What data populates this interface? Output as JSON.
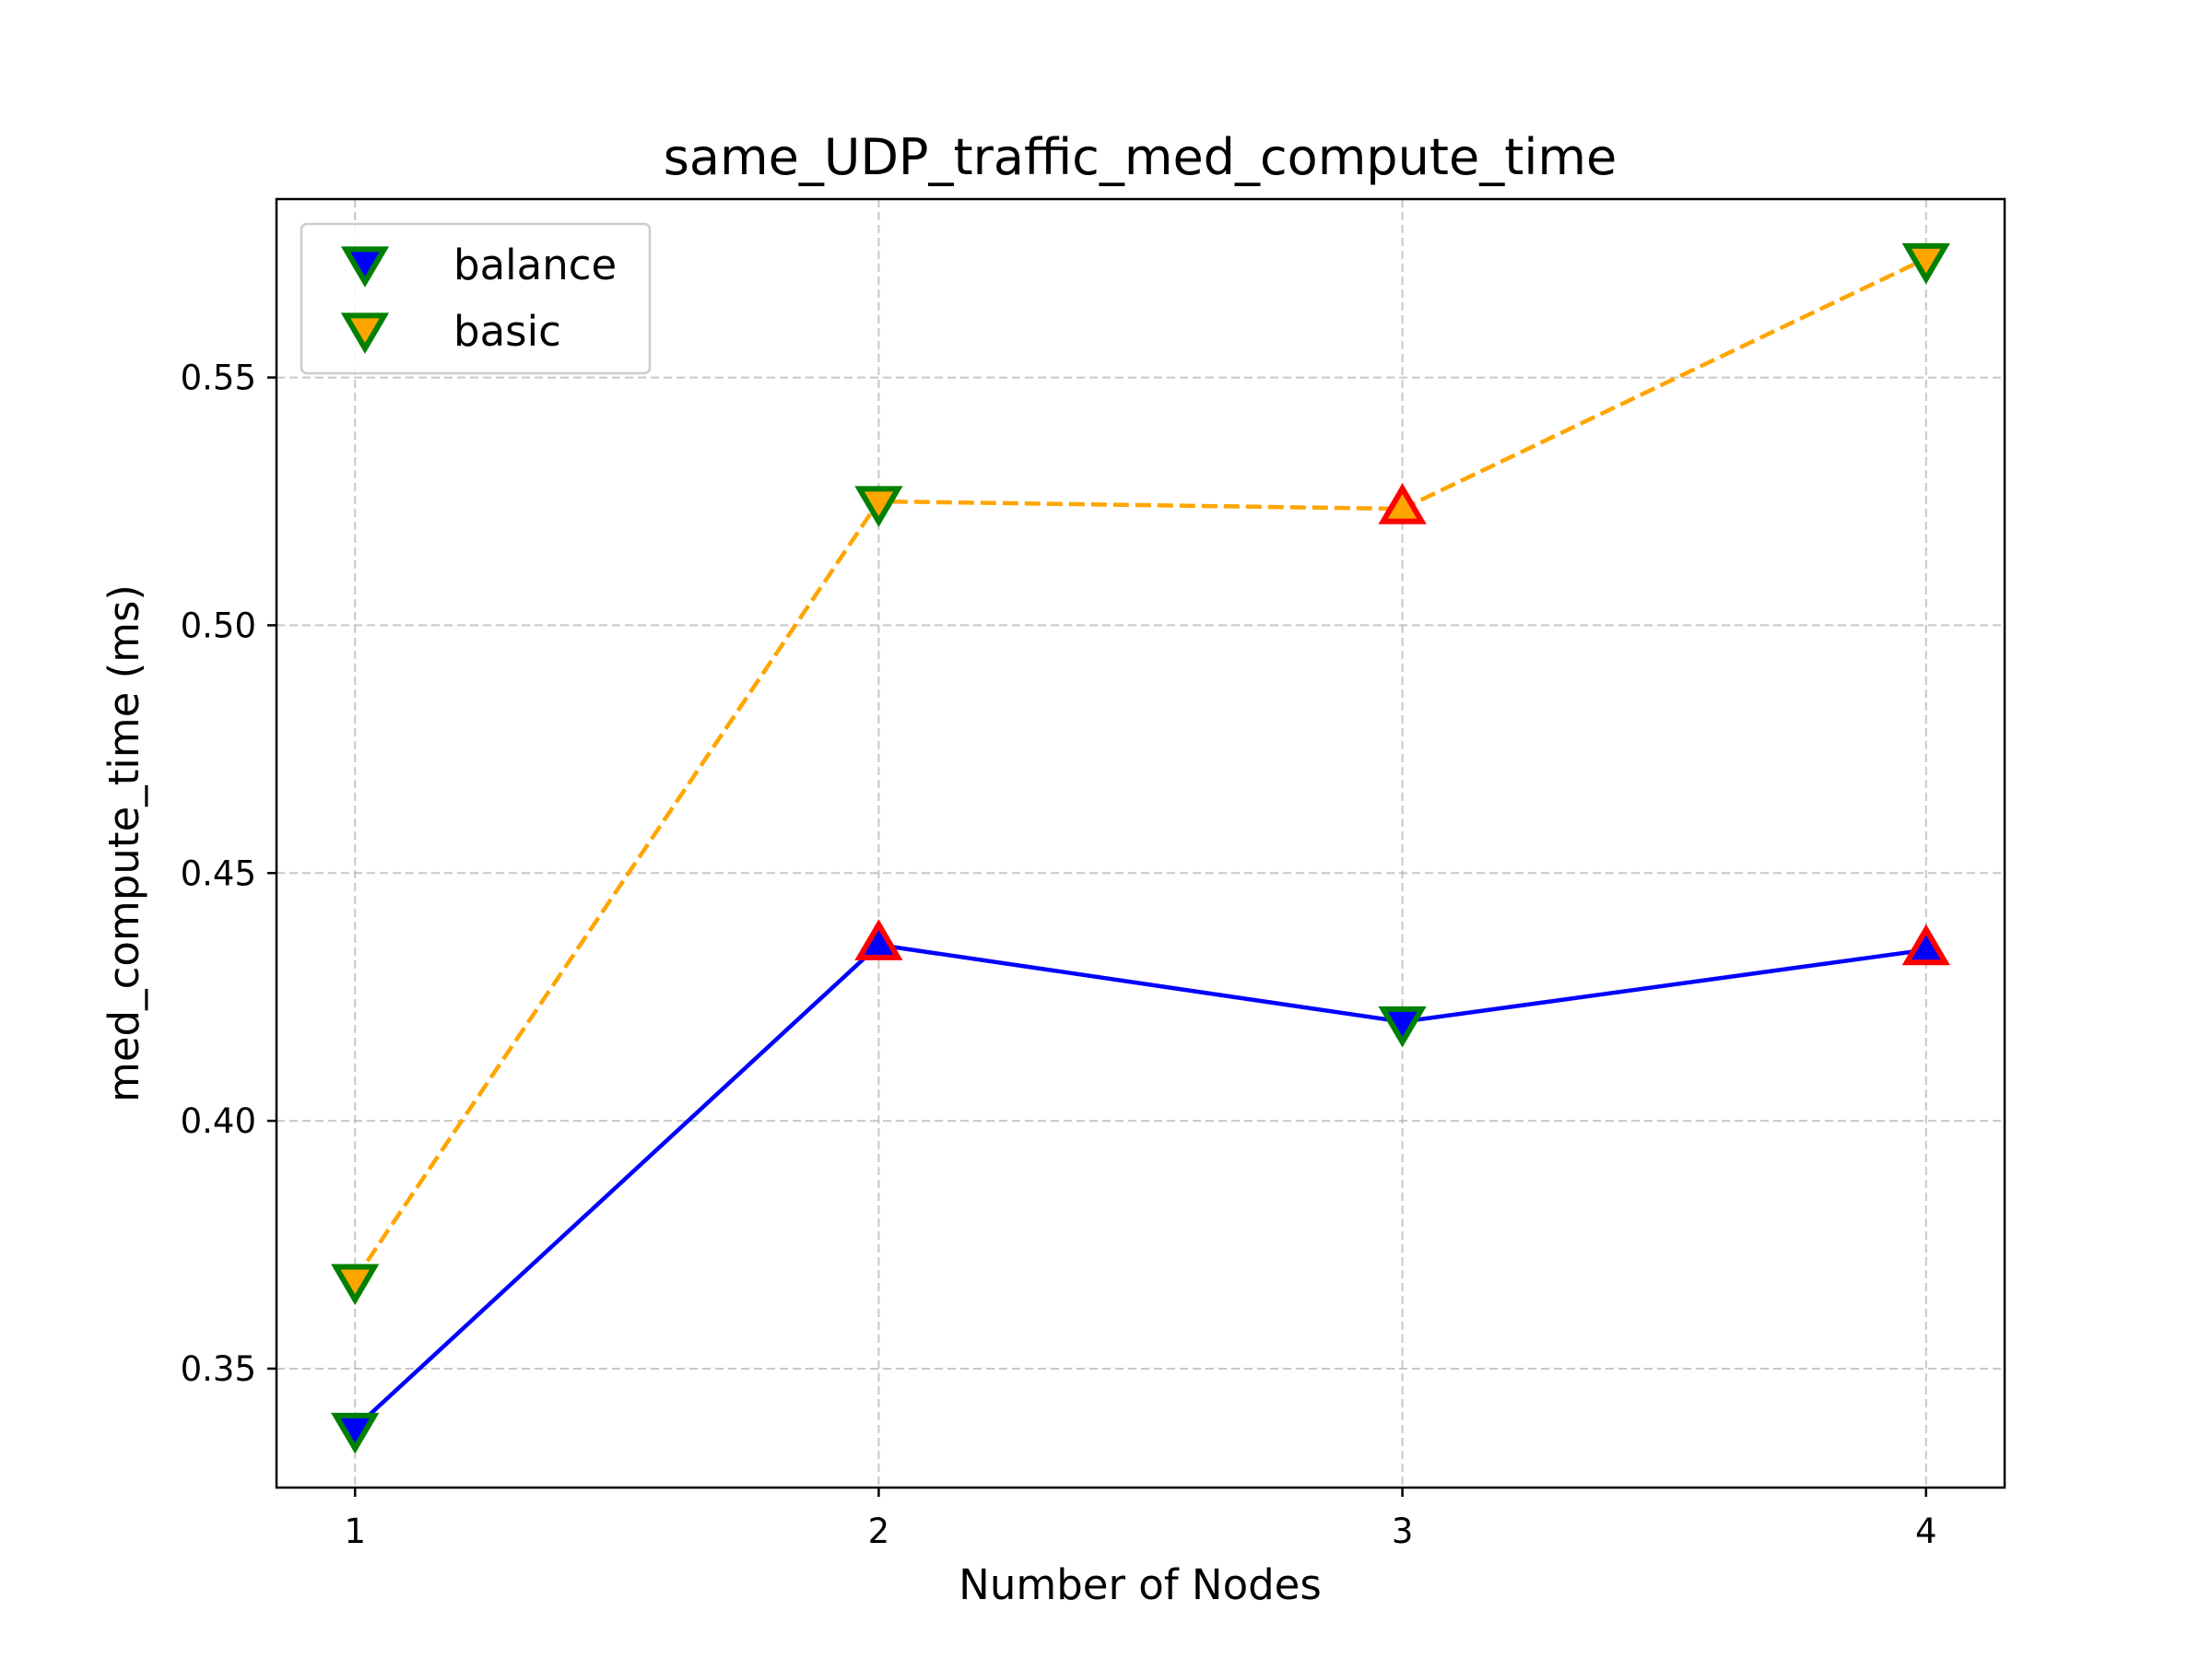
{
  "chart_data": {
    "type": "line",
    "title": "same_UDP_traffic_med_compute_time",
    "xlabel": "Number of Nodes",
    "ylabel": "med_compute_time (ms)",
    "x": [
      1,
      2,
      3,
      4
    ],
    "x_ticks": [
      "1",
      "2",
      "3",
      "4"
    ],
    "xlim": [
      0.85,
      4.15
    ],
    "y_ticks": [
      0.35,
      0.4,
      0.45,
      0.5,
      0.55
    ],
    "y_tick_labels": [
      "0.35",
      "0.40",
      "0.45",
      "0.50",
      "0.55"
    ],
    "ylim": [
      0.326,
      0.586
    ],
    "grid": true,
    "legend_position": "top-left",
    "series": [
      {
        "name": "balance",
        "values": [
          0.338,
          0.4355,
          0.42,
          0.4345
        ],
        "color": "#0000ff",
        "line_style": "solid",
        "marker_fill": "#0000ff",
        "markers": [
          "down",
          "up",
          "down",
          "up"
        ]
      },
      {
        "name": "basic",
        "values": [
          0.368,
          0.525,
          0.5235,
          0.574
        ],
        "color": "#ffa500",
        "line_style": "dashed",
        "marker_fill": "#ffa500",
        "markers": [
          "down",
          "down",
          "up",
          "down"
        ]
      }
    ],
    "marker_edge_colors": {
      "down": "#008000",
      "up": "#ff0000"
    }
  }
}
